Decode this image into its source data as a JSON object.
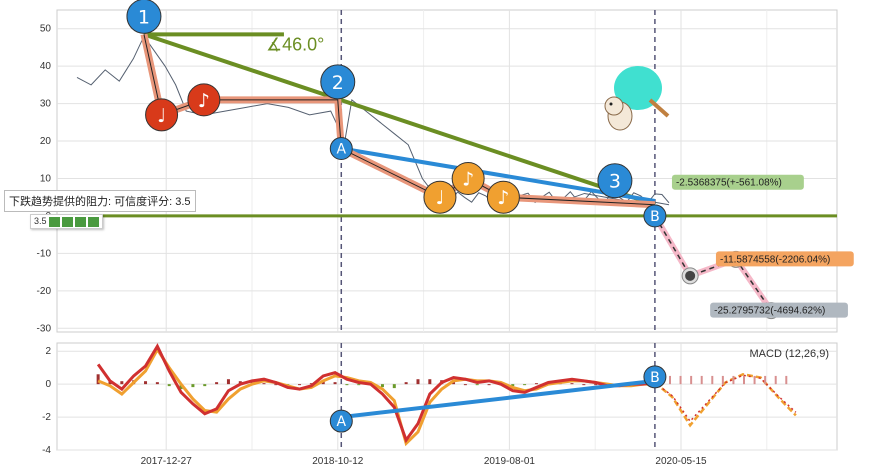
{
  "chart_data": [
    {
      "type": "line",
      "title": "",
      "xlabel": "",
      "ylabel": "",
      "ylim": [
        -31,
        55
      ],
      "yticks": [
        50,
        40,
        30,
        20,
        10,
        0,
        -10,
        -20,
        -30
      ],
      "xticks": [
        "2017-12-27",
        "2018-10-12",
        "2019-08-01",
        "2020-05-15"
      ],
      "grid": true,
      "price_series": [
        {
          "x": 0,
          "y": 37
        },
        {
          "x": 4,
          "y": 35
        },
        {
          "x": 8,
          "y": 39
        },
        {
          "x": 12,
          "y": 36
        },
        {
          "x": 16,
          "y": 42
        },
        {
          "x": 19,
          "y": 48
        },
        {
          "x": 22,
          "y": 44
        },
        {
          "x": 25,
          "y": 40
        },
        {
          "x": 28,
          "y": 35
        },
        {
          "x": 31,
          "y": 28
        },
        {
          "x": 36,
          "y": 27
        },
        {
          "x": 42,
          "y": 28
        },
        {
          "x": 48,
          "y": 29
        },
        {
          "x": 54,
          "y": 30
        },
        {
          "x": 60,
          "y": 29
        },
        {
          "x": 66,
          "y": 27
        },
        {
          "x": 72,
          "y": 28
        },
        {
          "x": 76,
          "y": 20
        },
        {
          "x": 78,
          "y": 31
        },
        {
          "x": 82,
          "y": 28
        },
        {
          "x": 86,
          "y": 25
        },
        {
          "x": 90,
          "y": 22
        },
        {
          "x": 94,
          "y": 19
        },
        {
          "x": 98,
          "y": 10
        },
        {
          "x": 102,
          "y": 5
        },
        {
          "x": 108,
          "y": 7
        },
        {
          "x": 114,
          "y": 8
        },
        {
          "x": 120,
          "y": 6
        },
        {
          "x": 126,
          "y": 5
        },
        {
          "x": 132,
          "y": 5
        },
        {
          "x": 138,
          "y": 4
        },
        {
          "x": 144,
          "y": 6
        },
        {
          "x": 150,
          "y": 5
        },
        {
          "x": 156,
          "y": 4
        },
        {
          "x": 162,
          "y": 4
        },
        {
          "x": 168,
          "y": 3
        }
      ],
      "wave_points": [
        {
          "label": "1",
          "x": 19,
          "y": 48.5
        },
        {
          "label": "♩",
          "x": 24,
          "y": 27
        },
        {
          "label": "♪",
          "x": 36,
          "y": 31
        },
        {
          "label": "2",
          "x": 74,
          "y": 31
        },
        {
          "label": "A",
          "x": 75,
          "y": 18
        },
        {
          "label": "♩",
          "x": 103,
          "y": 5
        },
        {
          "label": "♪",
          "x": 111,
          "y": 10
        },
        {
          "label": "♪",
          "x": 121,
          "y": 5
        },
        {
          "label": "3",
          "x": 164,
          "y": 3
        },
        {
          "label": "B",
          "x": 164,
          "y": 0
        }
      ],
      "projection_points": [
        {
          "x": 164,
          "y": 0
        },
        {
          "x": 174,
          "y": -16
        },
        {
          "x": 187,
          "y": -11.59
        },
        {
          "x": 197,
          "y": -25.28
        }
      ],
      "annotations": [
        {
          "text": "∡46.0°",
          "color": "#6b8e23"
        },
        {
          "text": "-2.5368375(+-561.08%)",
          "color": "#a8d08d"
        },
        {
          "text": "-11.5874558(-2206.04%)",
          "color": "#f4a460"
        },
        {
          "text": "-25.2795732(-4694.62%)",
          "color": "#b0b8c0"
        }
      ]
    },
    {
      "type": "line",
      "title": "MACD (12,26,9)",
      "ylim": [
        -4,
        2.5
      ],
      "yticks": [
        2,
        0,
        -2,
        -4
      ],
      "grid": true,
      "series": [
        {
          "color": "#d03030",
          "values": [
            1.2,
            0.2,
            -0.3,
            0.5,
            1.1,
            2.3,
            0.8,
            -0.5,
            -1.2,
            -1.8,
            -1.5,
            -0.4,
            0.0,
            0.2,
            0.3,
            0.1,
            -0.2,
            -0.3,
            -0.1,
            0.5,
            0.7,
            0.3,
            0.1,
            0.0,
            -0.6,
            -1.4,
            -3.4,
            -2.4,
            -0.6,
            0.1,
            0.4,
            0.3,
            0.1,
            0.2,
            0.0,
            -0.4,
            -0.5,
            -0.2,
            0.1,
            0.2,
            0.3,
            0.2,
            0.1,
            -0.1,
            -0.1,
            0.0,
            0.0,
            0.1
          ]
        },
        {
          "color": "#f0a030",
          "values": [
            0.2,
            -0.1,
            -0.6,
            0.1,
            0.8,
            2.1,
            1.0,
            0.0,
            -0.9,
            -1.6,
            -1.7,
            -0.9,
            -0.3,
            0.0,
            0.2,
            0.1,
            -0.1,
            -0.3,
            -0.2,
            0.2,
            0.5,
            0.4,
            0.2,
            0.1,
            -0.3,
            -1.0,
            -3.6,
            -2.9,
            -1.1,
            -0.3,
            0.2,
            0.3,
            0.2,
            0.2,
            0.1,
            -0.2,
            -0.4,
            -0.3,
            0.0,
            0.1,
            0.2,
            0.2,
            0.1,
            0.0,
            -0.1,
            -0.1,
            0.0,
            0.0
          ]
        }
      ],
      "projection": [
        0.1,
        -0.8,
        -2.5,
        -1.2,
        0.1,
        0.6,
        0.4,
        -0.8,
        -1.9
      ],
      "wave_points": [
        {
          "label": "A",
          "y": -2.0
        },
        {
          "label": "B",
          "y": 0.2
        }
      ]
    }
  ],
  "tooltip": {
    "text": "下跌趋势提供的阻力: 可信度评分: 3.5",
    "rating": "3.5"
  }
}
